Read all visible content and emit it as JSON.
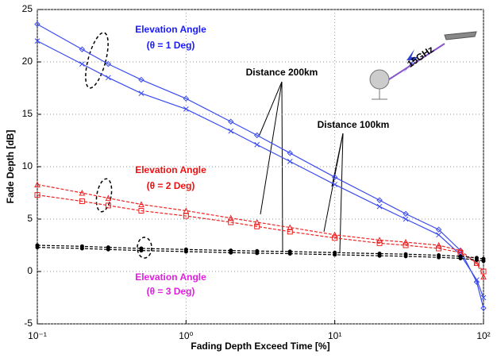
{
  "chart_data": {
    "type": "line",
    "x_label": "Fading Depth Exceed Time [%]",
    "y_label": "Fade Depth [dB]",
    "x_log": true,
    "grid": true,
    "x": [
      0.1,
      0.2,
      0.3,
      0.5,
      1,
      2,
      3,
      5,
      10,
      20,
      30,
      50,
      70,
      90,
      100
    ],
    "series": [
      {
        "color": "#3a4bf0",
        "dash": false,
        "marker": "diamond",
        "values": [
          23.6,
          21.2,
          19.8,
          18.3,
          16.5,
          14.3,
          13.0,
          11.3,
          9.0,
          6.8,
          5.5,
          4.0,
          2.0,
          -1.0,
          -3.5
        ]
      },
      {
        "color": "#3a4bf0",
        "dash": false,
        "marker": "cross",
        "values": [
          22.0,
          19.8,
          18.5,
          17.0,
          15.5,
          13.4,
          12.1,
          10.5,
          8.3,
          6.2,
          5.0,
          3.5,
          1.6,
          -0.8,
          -2.5
        ]
      },
      {
        "color": "#ee2222",
        "dash": true,
        "marker": "triangle",
        "values": [
          8.3,
          7.5,
          7.0,
          6.4,
          5.8,
          5.1,
          4.7,
          4.2,
          3.5,
          3.0,
          2.8,
          2.5,
          2.0,
          0.8,
          -0.5
        ]
      },
      {
        "color": "#ee2222",
        "dash": true,
        "marker": "square",
        "values": [
          7.3,
          6.7,
          6.3,
          5.8,
          5.3,
          4.7,
          4.3,
          3.8,
          3.2,
          2.7,
          2.5,
          2.2,
          1.8,
          0.8,
          0.0
        ]
      },
      {
        "color": "#000000",
        "dash": true,
        "marker": "dot",
        "values": [
          2.5,
          2.4,
          2.3,
          2.2,
          2.1,
          2.0,
          1.95,
          1.9,
          1.8,
          1.7,
          1.65,
          1.55,
          1.45,
          1.3,
          1.2
        ]
      },
      {
        "color": "#000000",
        "dash": true,
        "marker": "dot",
        "values": [
          2.3,
          2.2,
          2.1,
          2.0,
          1.9,
          1.8,
          1.75,
          1.7,
          1.6,
          1.5,
          1.45,
          1.35,
          1.25,
          1.1,
          1.0
        ]
      }
    ],
    "xlim": [
      0.1,
      100
    ],
    "xticks": [
      {
        "value": 0.1,
        "label": "10⁻¹"
      },
      {
        "value": 1,
        "label": "10⁰"
      },
      {
        "value": 10,
        "label": "10¹"
      },
      {
        "value": 100,
        "label": "10²"
      }
    ],
    "ylim": [
      -5,
      25
    ],
    "yticks": [
      -5,
      0,
      5,
      10,
      15,
      20,
      25
    ],
    "annotations": [
      {
        "text": "Elevation Angle",
        "color": "#1a1aff"
      },
      {
        "text": "(θ = 1 Deg)",
        "color": "#1a1aff"
      },
      {
        "text": "Elevation Angle",
        "color": "#ee1111"
      },
      {
        "text": "(θ = 2 Deg)",
        "color": "#ee1111"
      },
      {
        "text": "Elevation Angle",
        "color": "#e020e0"
      },
      {
        "text": "(θ = 3 Deg)",
        "color": "#e020e0"
      },
      {
        "text": "Distance 200km",
        "color": "#000000"
      },
      {
        "text": "Distance 100km",
        "color": "#000000"
      },
      {
        "text": "15GHz",
        "color": "#000000"
      }
    ]
  }
}
